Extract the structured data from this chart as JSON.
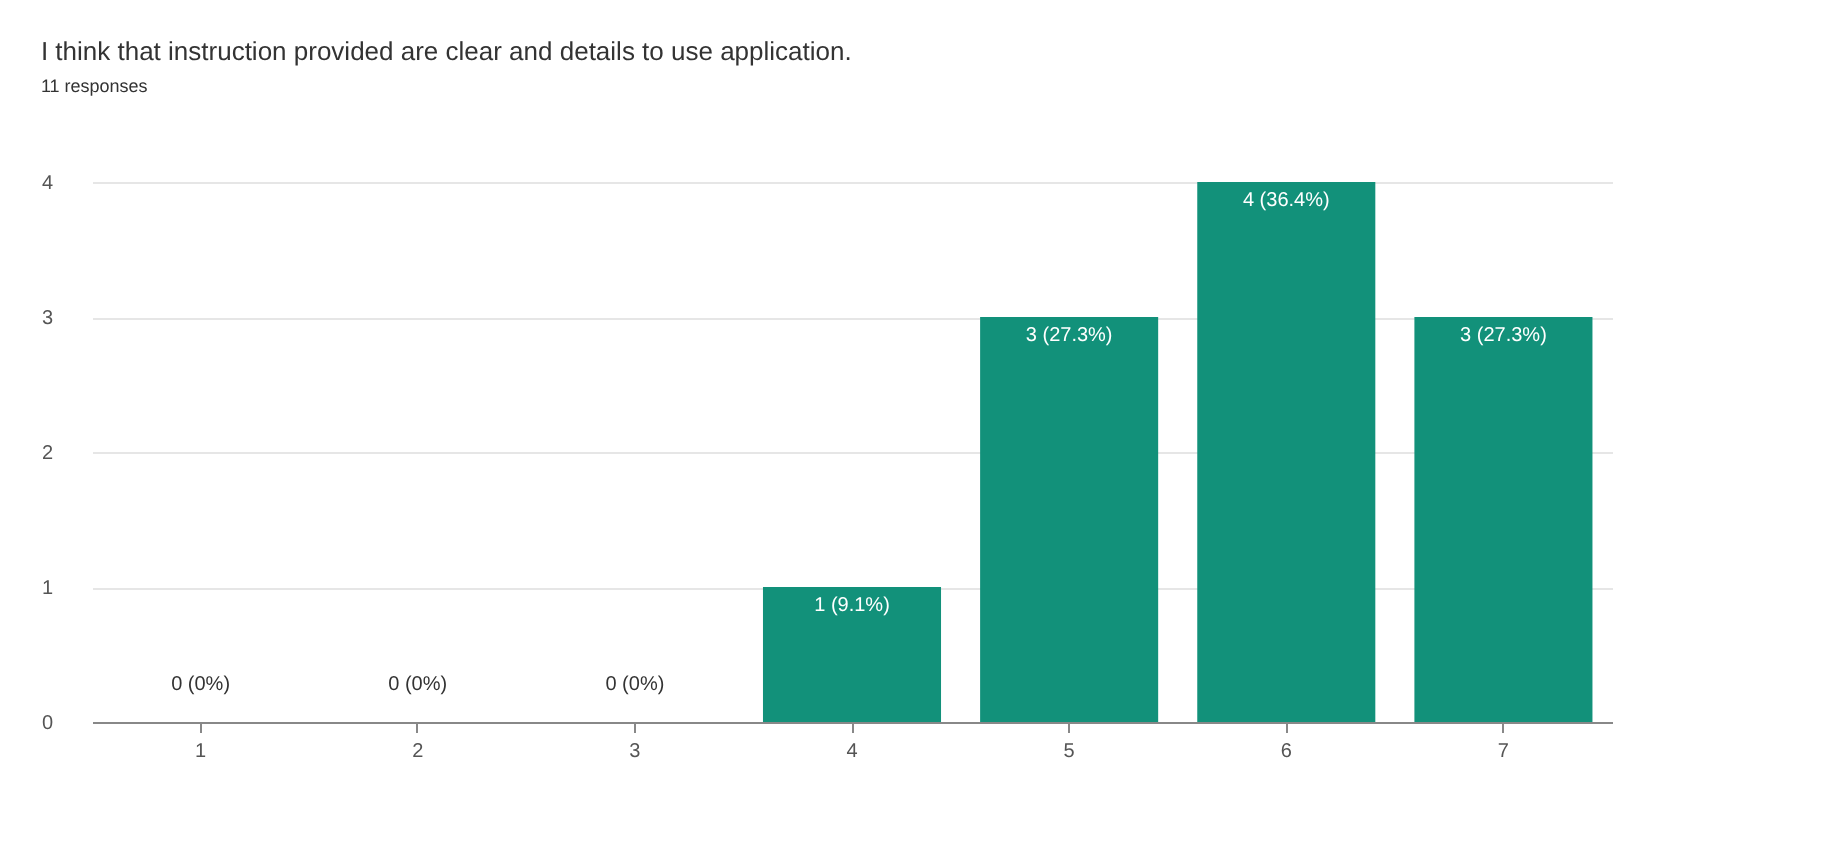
{
  "chart_data": {
    "type": "bar",
    "title": "I think that instruction provided are clear and details to use application.",
    "subtitle": "11 responses",
    "categories": [
      "1",
      "2",
      "3",
      "4",
      "5",
      "6",
      "7"
    ],
    "values": [
      0,
      0,
      0,
      1,
      3,
      4,
      3
    ],
    "value_labels": [
      "0 (0%)",
      "0 (0%)",
      "0 (0%)",
      "1 (9.1%)",
      "3 (27.3%)",
      "4 (36.4%)",
      "3 (27.3%)"
    ],
    "color": "#12917a",
    "ylim": [
      0,
      4
    ],
    "yticks": [
      0,
      1,
      2,
      3,
      4
    ],
    "grid": "y"
  }
}
